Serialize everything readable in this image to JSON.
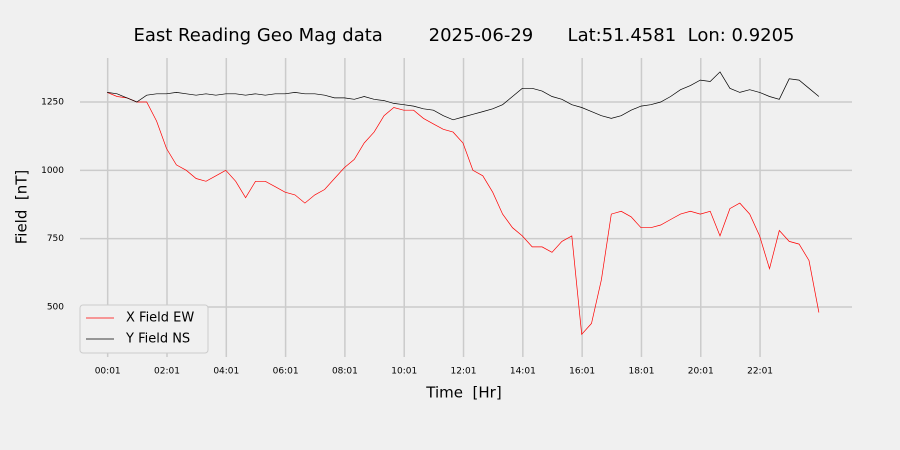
{
  "chart_data": {
    "type": "line",
    "title": "East Reading Geo Mag data        2025-06-29      Lat:51.4581  Lon: 0.9205",
    "x_label": "Time  [Hr]",
    "y_label": "Field  [nT]",
    "x": [
      0,
      20,
      40,
      60,
      80,
      100,
      120,
      140,
      160,
      180,
      200,
      220,
      240,
      260,
      280,
      300,
      320,
      340,
      360,
      380,
      400,
      420,
      440,
      460,
      480,
      500,
      520,
      540,
      560,
      580,
      600,
      620,
      640,
      660,
      680,
      700,
      720,
      740,
      760,
      780,
      800,
      820,
      840,
      860,
      880,
      900,
      920,
      940,
      960,
      980,
      1000,
      1020,
      1040,
      1060,
      1080,
      1100,
      1120,
      1140,
      1160,
      1180,
      1200,
      1220,
      1240,
      1260,
      1280,
      1300,
      1320,
      1340,
      1360,
      1380,
      1400,
      1420,
      1440
    ],
    "series": [
      {
        "name": "X Field EW",
        "color": "#ff0000",
        "values": [
          1285,
          1270,
          1265,
          1250,
          1250,
          1180,
          1080,
          1020,
          1000,
          970,
          960,
          980,
          1000,
          960,
          900,
          960,
          960,
          940,
          920,
          910,
          880,
          910,
          930,
          970,
          1010,
          1040,
          1100,
          1140,
          1200,
          1230,
          1220,
          1220,
          1190,
          1170,
          1150,
          1140,
          1100,
          1000,
          980,
          920,
          840,
          790,
          760,
          720,
          720,
          700,
          740,
          760,
          400,
          440,
          600,
          840,
          850,
          830,
          790,
          790,
          800,
          820,
          840,
          850,
          840,
          850,
          760,
          860,
          880,
          840,
          760,
          640,
          780,
          740,
          730,
          670,
          480
        ]
      },
      {
        "name": "Y Field NS",
        "color": "#000000",
        "values": [
          1285,
          1280,
          1265,
          1250,
          1275,
          1280,
          1280,
          1285,
          1280,
          1275,
          1280,
          1275,
          1280,
          1280,
          1275,
          1280,
          1275,
          1280,
          1280,
          1285,
          1280,
          1280,
          1275,
          1265,
          1265,
          1260,
          1270,
          1260,
          1255,
          1245,
          1240,
          1235,
          1225,
          1220,
          1200,
          1185,
          1195,
          1205,
          1215,
          1225,
          1240,
          1270,
          1300,
          1300,
          1290,
          1270,
          1260,
          1240,
          1230,
          1215,
          1200,
          1190,
          1200,
          1220,
          1235,
          1240,
          1250,
          1270,
          1295,
          1310,
          1330,
          1325,
          1360,
          1300,
          1285,
          1295,
          1285,
          1270,
          1260,
          1335,
          1330,
          1300,
          1270
        ]
      }
    ],
    "xlim": [
      -55,
      1507
    ],
    "xticks": [
      {
        "value": 1,
        "label": "00:01"
      },
      {
        "value": 121,
        "label": "02:01"
      },
      {
        "value": 241,
        "label": "04:01"
      },
      {
        "value": 361,
        "label": "06:01"
      },
      {
        "value": 481,
        "label": "08:01"
      },
      {
        "value": 601,
        "label": "10:01"
      },
      {
        "value": 721,
        "label": "12:01"
      },
      {
        "value": 841,
        "label": "14:01"
      },
      {
        "value": 961,
        "label": "16:01"
      },
      {
        "value": 1081,
        "label": "18:01"
      },
      {
        "value": 1201,
        "label": "20:01"
      },
      {
        "value": 1321,
        "label": "22:01"
      }
    ],
    "ylim": [
      317,
      1411
    ],
    "yticks": [
      500,
      750,
      1000,
      1250
    ],
    "grid": true,
    "legend": "lower left"
  }
}
